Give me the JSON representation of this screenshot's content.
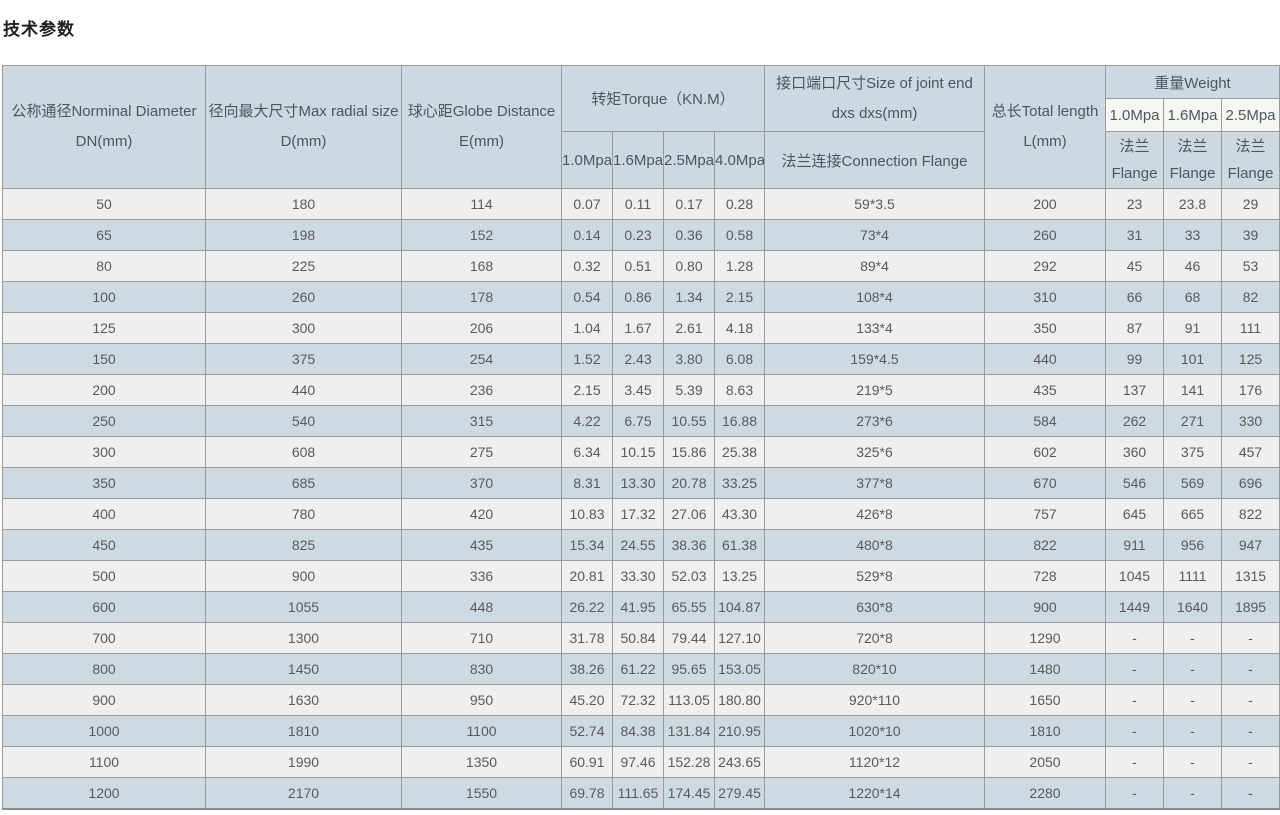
{
  "page_title": "技术参数",
  "colors": {
    "header_bg": "#ccd9e0",
    "row_light_bg": "#efefef",
    "row_alt_bg": "#cedae1",
    "weight_mpa_highlight_bg": "#f6f6f3",
    "border": "#9b9b9b",
    "text": "#5a5a5a"
  },
  "table": {
    "headers": {
      "dn_line1": "公称通径Norminal Diameter",
      "dn_line2": "DN(mm)",
      "d_line1": "径向最大尺寸Max radial size",
      "d_line2": "D(mm)",
      "e_line1": "球心距Globe Distance",
      "e_line2": "E(mm)",
      "torque": "转矩Torque（KN.M）",
      "torque_cols": [
        "1.0Mpa",
        "1.6Mpa",
        "2.5Mpa",
        "4.0Mpa"
      ],
      "joint_line1": "接口端口尺寸Size of joint end",
      "joint_line2": "dxs dxs(mm)",
      "joint_flange": "法兰连接Connection Flange",
      "length_line1": "总长Total length",
      "length_line2": "L(mm)",
      "weight": "重量Weight",
      "weight_cols": [
        "1.0Mpa",
        "1.6Mpa",
        "2.5Mpa"
      ],
      "flange_cn": "法兰",
      "flange_en": "Flange"
    },
    "rows": [
      [
        "50",
        "180",
        "114",
        "0.07",
        "0.11",
        "0.17",
        "0.28",
        "59*3.5",
        "200",
        "23",
        "23.8",
        "29"
      ],
      [
        "65",
        "198",
        "152",
        "0.14",
        "0.23",
        "0.36",
        "0.58",
        "73*4",
        "260",
        "31",
        "33",
        "39"
      ],
      [
        "80",
        "225",
        "168",
        "0.32",
        "0.51",
        "0.80",
        "1.28",
        "89*4",
        "292",
        "45",
        "46",
        "53"
      ],
      [
        "100",
        "260",
        "178",
        "0.54",
        "0.86",
        "1.34",
        "2.15",
        "108*4",
        "310",
        "66",
        "68",
        "82"
      ],
      [
        "125",
        "300",
        "206",
        "1.04",
        "1.67",
        "2.61",
        "4.18",
        "133*4",
        "350",
        "87",
        "91",
        "111"
      ],
      [
        "150",
        "375",
        "254",
        "1.52",
        "2.43",
        "3.80",
        "6.08",
        "159*4.5",
        "440",
        "99",
        "101",
        "125"
      ],
      [
        "200",
        "440",
        "236",
        "2.15",
        "3.45",
        "5.39",
        "8.63",
        "219*5",
        "435",
        "137",
        "141",
        "176"
      ],
      [
        "250",
        "540",
        "315",
        "4.22",
        "6.75",
        "10.55",
        "16.88",
        "273*6",
        "584",
        "262",
        "271",
        "330"
      ],
      [
        "300",
        "608",
        "275",
        "6.34",
        "10.15",
        "15.86",
        "25.38",
        "325*6",
        "602",
        "360",
        "375",
        "457"
      ],
      [
        "350",
        "685",
        "370",
        "8.31",
        "13.30",
        "20.78",
        "33.25",
        "377*8",
        "670",
        "546",
        "569",
        "696"
      ],
      [
        "400",
        "780",
        "420",
        "10.83",
        "17.32",
        "27.06",
        "43.30",
        "426*8",
        "757",
        "645",
        "665",
        "822"
      ],
      [
        "450",
        "825",
        "435",
        "15.34",
        "24.55",
        "38.36",
        "61.38",
        "480*8",
        "822",
        "911",
        "956",
        "947"
      ],
      [
        "500",
        "900",
        "336",
        "20.81",
        "33.30",
        "52.03",
        "13.25",
        "529*8",
        "728",
        "1045",
        "1111",
        "1315"
      ],
      [
        "600",
        "1055",
        "448",
        "26.22",
        "41.95",
        "65.55",
        "104.87",
        "630*8",
        "900",
        "1449",
        "1640",
        "1895"
      ],
      [
        "700",
        "1300",
        "710",
        "31.78",
        "50.84",
        "79.44",
        "127.10",
        "720*8",
        "1290",
        "-",
        "-",
        "-"
      ],
      [
        "800",
        "1450",
        "830",
        "38.26",
        "61.22",
        "95.65",
        "153.05",
        "820*10",
        "1480",
        "-",
        "-",
        "-"
      ],
      [
        "900",
        "1630",
        "950",
        "45.20",
        "72.32",
        "113.05",
        "180.80",
        "920*110",
        "1650",
        "-",
        "-",
        "-"
      ],
      [
        "1000",
        "1810",
        "1100",
        "52.74",
        "84.38",
        "131.84",
        "210.95",
        "1020*10",
        "1810",
        "-",
        "-",
        "-"
      ],
      [
        "1100",
        "1990",
        "1350",
        "60.91",
        "97.46",
        "152.28",
        "243.65",
        "1120*12",
        "2050",
        "-",
        "-",
        "-"
      ],
      [
        "1200",
        "2170",
        "1550",
        "69.78",
        "111.65",
        "174.45",
        "279.45",
        "1220*14",
        "2280",
        "-",
        "-",
        "-"
      ]
    ]
  }
}
